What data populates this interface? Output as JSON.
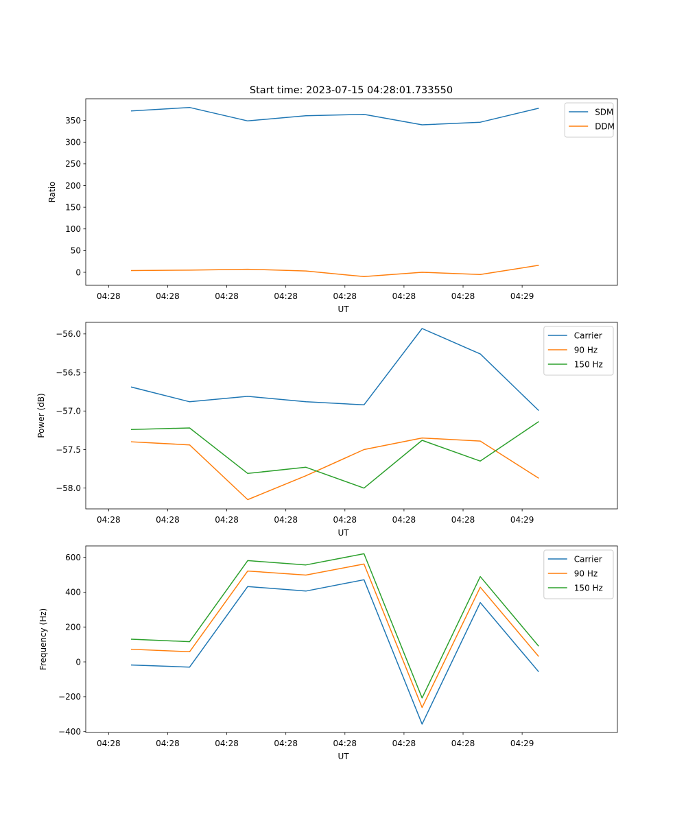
{
  "figure": {
    "title": "Start time: 2023-07-15 04:28:01.733550"
  },
  "chart_data": [
    {
      "type": "line",
      "title": "",
      "xlabel": "UT",
      "ylabel": "Ratio",
      "x_ticks": [
        "04:28",
        "04:28",
        "04:28",
        "04:28",
        "04:28",
        "04:28",
        "04:28",
        "04:29"
      ],
      "y_ticks": [
        "0",
        "50",
        "100",
        "150",
        "200",
        "250",
        "300",
        "350"
      ],
      "y_tick_values": [
        0,
        50,
        100,
        150,
        200,
        250,
        300,
        350
      ],
      "xlim": [
        -0.3873,
        8.6127
      ],
      "ylim": [
        -30,
        400
      ],
      "legend": "upper-right",
      "x": [
        0.387,
        1.371,
        2.355,
        3.339,
        4.323,
        5.307,
        6.291,
        7.275
      ],
      "series": [
        {
          "name": "SDM",
          "color": "#1f77b4",
          "values": [
            372,
            380,
            349,
            361,
            364,
            340,
            346,
            378
          ]
        },
        {
          "name": "DDM",
          "color": "#ff7f0e",
          "values": [
            4,
            5,
            7,
            3,
            -10,
            0,
            -5,
            16
          ]
        }
      ]
    },
    {
      "type": "line",
      "title": "",
      "xlabel": "UT",
      "ylabel": "Power (dB)",
      "x_ticks": [
        "04:28",
        "04:28",
        "04:28",
        "04:28",
        "04:28",
        "04:28",
        "04:28",
        "04:29"
      ],
      "y_ticks": [
        "−58.0",
        "−57.5",
        "−57.0",
        "−56.5",
        "−56.0"
      ],
      "y_tick_values": [
        -58.0,
        -57.5,
        -57.0,
        -56.5,
        -56.0
      ],
      "xlim": [
        -0.3873,
        8.6127
      ],
      "ylim": [
        -58.27,
        -55.85
      ],
      "legend": "upper-right",
      "x": [
        0.387,
        1.371,
        2.355,
        3.339,
        4.323,
        5.307,
        6.291,
        7.275
      ],
      "series": [
        {
          "name": "Carrier",
          "color": "#1f77b4",
          "values": [
            -56.69,
            -56.88,
            -56.81,
            -56.88,
            -56.92,
            -55.93,
            -56.26,
            -56.99
          ]
        },
        {
          "name": "90 Hz",
          "color": "#ff7f0e",
          "values": [
            -57.4,
            -57.44,
            -58.15,
            -57.84,
            -57.5,
            -57.35,
            -57.39,
            -57.87
          ]
        },
        {
          "name": "150 Hz",
          "color": "#2ca02c",
          "values": [
            -57.24,
            -57.22,
            -57.81,
            -57.73,
            -58.0,
            -57.38,
            -57.65,
            -57.14
          ]
        }
      ]
    },
    {
      "type": "line",
      "title": "",
      "xlabel": "UT",
      "ylabel": "Frequency (Hz)",
      "x_ticks": [
        "04:28",
        "04:28",
        "04:28",
        "04:28",
        "04:28",
        "04:28",
        "04:28",
        "04:29"
      ],
      "y_ticks": [
        "−400",
        "−200",
        "0",
        "200",
        "400",
        "600"
      ],
      "y_tick_values": [
        -400,
        -200,
        0,
        200,
        400,
        600
      ],
      "xlim": [
        -0.3873,
        8.6127
      ],
      "ylim": [
        -405,
        665
      ],
      "legend": "upper-right",
      "x": [
        0.387,
        1.371,
        2.355,
        3.339,
        4.323,
        5.307,
        6.291,
        7.275
      ],
      "series": [
        {
          "name": "Carrier",
          "color": "#1f77b4",
          "values": [
            -18,
            -30,
            432,
            406,
            471,
            -357,
            340,
            -55
          ]
        },
        {
          "name": "90 Hz",
          "color": "#ff7f0e",
          "values": [
            72,
            58,
            521,
            498,
            561,
            -262,
            428,
            33
          ]
        },
        {
          "name": "150 Hz",
          "color": "#2ca02c",
          "values": [
            130,
            116,
            581,
            556,
            620,
            -207,
            489,
            92
          ]
        }
      ]
    }
  ]
}
